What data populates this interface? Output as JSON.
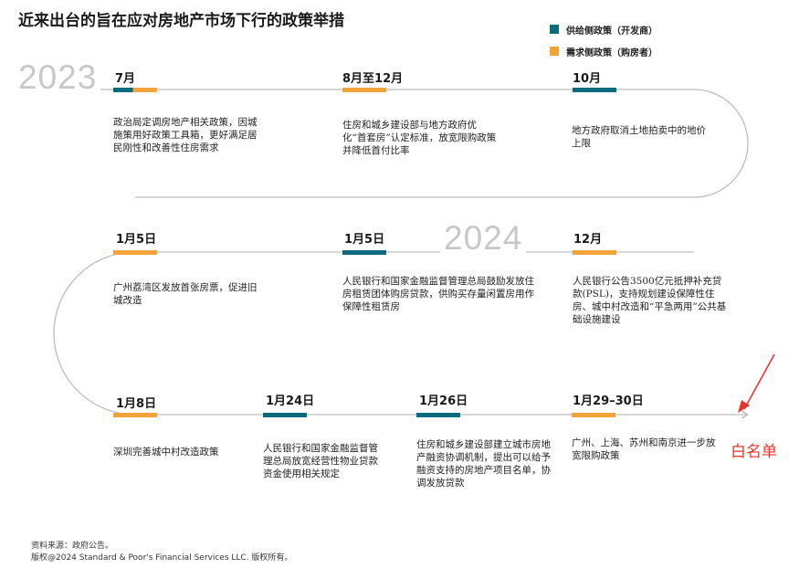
{
  "title": "近来出台的旨在应对房地产市场下行的政策举措",
  "legend": [
    {
      "label": "供给侧政策（开发商）",
      "color": "#0e6b7e"
    },
    {
      "label": "需求侧政策（购房者）",
      "color": "#f2a33a"
    }
  ],
  "years": [
    "2023",
    "2024"
  ],
  "events": [
    {
      "date": "7月",
      "type": "both",
      "text": "政治局定调房地产相关政策，因城施策用好政策工具箱，更好满足居民刚性和改善性住房需求"
    },
    {
      "date": "8月至12月",
      "type": "demand",
      "text": "住房和城乡建设部与地方政府优化“首套房”认定标准，放宽限购政策并降低首付比率"
    },
    {
      "date": "10月",
      "type": "supply",
      "text": "地方政府取消土地拍卖中的地价上限"
    },
    {
      "date": "1月5日",
      "type": "demand",
      "text": "广州荔湾区发放首张房票，促进旧城改造"
    },
    {
      "date": "1月5日",
      "type": "supply",
      "text": "人民银行和国家金融监督管理总局鼓励发放住房租赁团体购房贷款，供购买存量闲置房用作保障性租赁房"
    },
    {
      "date": "12月",
      "type": "demand",
      "text": "人民银行公告3500亿元抵押补充贷款(PSL)，支持规划建设保障性住房、城中村改造和“平急两用”公共基础设施建设"
    },
    {
      "date": "1月8日",
      "type": "demand",
      "text": "深圳完善城中村改造政策"
    },
    {
      "date": "1月24日",
      "type": "supply",
      "text": "人民银行和国家金融监督管理总局放宽经营性物业贷款资金使用相关规定"
    },
    {
      "date": "1月26日",
      "type": "supply",
      "text": "住房和城乡建设部建立城市房地产融资协调机制，提出可以给予融资支持的房地产项目名单，协调发放贷款"
    },
    {
      "date": "1月29–30日",
      "type": "demand",
      "text": "广州、上海、苏州和南京进一步放宽限购政策"
    }
  ],
  "annotation": "白名单",
  "footer": {
    "source": "资料来源：政府公告。",
    "copyright": "版权@2024 Standard & Poor's Financial Services LLC. 版权所有。"
  },
  "colors": {
    "supply": "#0e6b7e",
    "demand": "#f2a33a",
    "line": "#bdbdbd",
    "annotation": "#e8352b"
  }
}
